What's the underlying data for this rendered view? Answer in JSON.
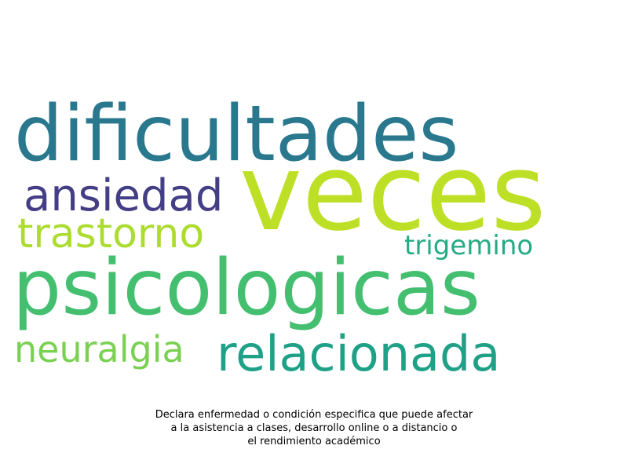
{
  "words": [
    {
      "text": "dificultades",
      "color": "#2a788e"
    },
    {
      "text": "veces",
      "color": "#bddf26"
    },
    {
      "text": "ansiedad",
      "color": "#433e85"
    },
    {
      "text": "trastorno",
      "color": "#addc30"
    },
    {
      "text": "trigemino",
      "color": "#25ab82"
    },
    {
      "text": "psicologicas",
      "color": "#44bf70"
    },
    {
      "text": "neuralgia",
      "color": "#7ad151"
    },
    {
      "text": "relacionada",
      "color": "#1fa187"
    }
  ],
  "caption": {
    "line1": "Declara enfermedad o condición especifica que puede afectar",
    "line2": "a la asistencia a clases, desarrollo online o a distancio o",
    "line3": "el rendimiento académico"
  }
}
